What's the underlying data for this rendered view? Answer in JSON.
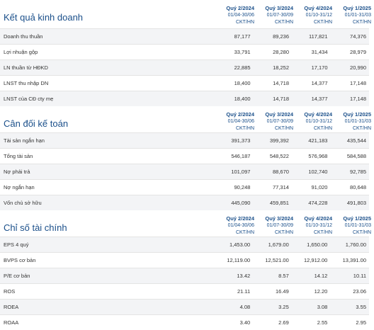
{
  "sections": [
    {
      "title": "Kết quả kinh doanh",
      "periods": [
        {
          "quarter": "Quý 2/2024",
          "range": "01/04-30/06",
          "type": "CKT/HN"
        },
        {
          "quarter": "Quý 3/2024",
          "range": "01/07-30/09",
          "type": "CKT/HN"
        },
        {
          "quarter": "Quý 4/2024",
          "range": "01/10-31/12",
          "type": "CKT/HN"
        },
        {
          "quarter": "Quý 1/2025",
          "range": "01/01-31/03",
          "type": "CKT/HN"
        }
      ],
      "rows": [
        {
          "label": "Doanh thu thuần",
          "values": [
            "87,177",
            "89,236",
            "117,821",
            "74,376"
          ]
        },
        {
          "label": "Lợi nhuận gộp",
          "values": [
            "33,791",
            "28,280",
            "31,434",
            "28,979"
          ]
        },
        {
          "label": "LN thuần từ HĐKD",
          "values": [
            "22,885",
            "18,252",
            "17,170",
            "20,990"
          ]
        },
        {
          "label": "LNST thu nhập DN",
          "values": [
            "18,400",
            "14,718",
            "14,377",
            "17,148"
          ]
        },
        {
          "label": "LNST của CĐ cty mẹ",
          "values": [
            "18,400",
            "14,718",
            "14,377",
            "17,148"
          ]
        }
      ]
    },
    {
      "title": "Cân đối kế toán",
      "periods": [
        {
          "quarter": "Quý 2/2024",
          "range": "01/04-30/06",
          "type": "CKT/HN"
        },
        {
          "quarter": "Quý 3/2024",
          "range": "01/07-30/09",
          "type": "CKT/HN"
        },
        {
          "quarter": "Quý 4/2024",
          "range": "01/10-31/12",
          "type": "CKT/HN"
        },
        {
          "quarter": "Quý 1/2025",
          "range": "01/01-31/03",
          "type": "CKT/HN"
        }
      ],
      "rows": [
        {
          "label": "Tài sản ngắn hạn",
          "values": [
            "391,373",
            "399,392",
            "421,183",
            "435,544"
          ]
        },
        {
          "label": "Tổng tài sản",
          "values": [
            "546,187",
            "548,522",
            "576,968",
            "584,588"
          ]
        },
        {
          "label": "Nợ phải trả",
          "values": [
            "101,097",
            "88,670",
            "102,740",
            "92,785"
          ]
        },
        {
          "label": "Nợ ngắn hạn",
          "values": [
            "90,248",
            "77,314",
            "91,020",
            "80,648"
          ]
        },
        {
          "label": "Vốn chủ sở hữu",
          "values": [
            "445,090",
            "459,851",
            "474,228",
            "491,803"
          ]
        }
      ]
    },
    {
      "title": "Chỉ số tài chính",
      "periods": [
        {
          "quarter": "Quý 2/2024",
          "range": "01/04-30/06",
          "type": "CKT/HN"
        },
        {
          "quarter": "Quý 3/2024",
          "range": "01/07-30/09",
          "type": "CKT/HN"
        },
        {
          "quarter": "Quý 4/2024",
          "range": "01/10-31/12",
          "type": "CKT/HN"
        },
        {
          "quarter": "Quý 1/2025",
          "range": "01/01-31/03",
          "type": "CKT/HN"
        }
      ],
      "rows": [
        {
          "label": "EPS 4 quý",
          "values": [
            "1,453.00",
            "1,679.00",
            "1,650.00",
            "1,760.00"
          ]
        },
        {
          "label": "BVPS cơ bản",
          "values": [
            "12,119.00",
            "12,521.00",
            "12,912.00",
            "13,391.00"
          ]
        },
        {
          "label": "P/E cơ bản",
          "values": [
            "13.42",
            "8.57",
            "14.12",
            "10.11"
          ]
        },
        {
          "label": "ROS",
          "values": [
            "21.11",
            "16.49",
            "12.20",
            "23.06"
          ]
        },
        {
          "label": "ROEA",
          "values": [
            "4.08",
            "3.25",
            "3.08",
            "3.55"
          ]
        },
        {
          "label": "ROAA",
          "values": [
            "3.40",
            "2.69",
            "2.55",
            "2.95"
          ]
        }
      ]
    }
  ]
}
